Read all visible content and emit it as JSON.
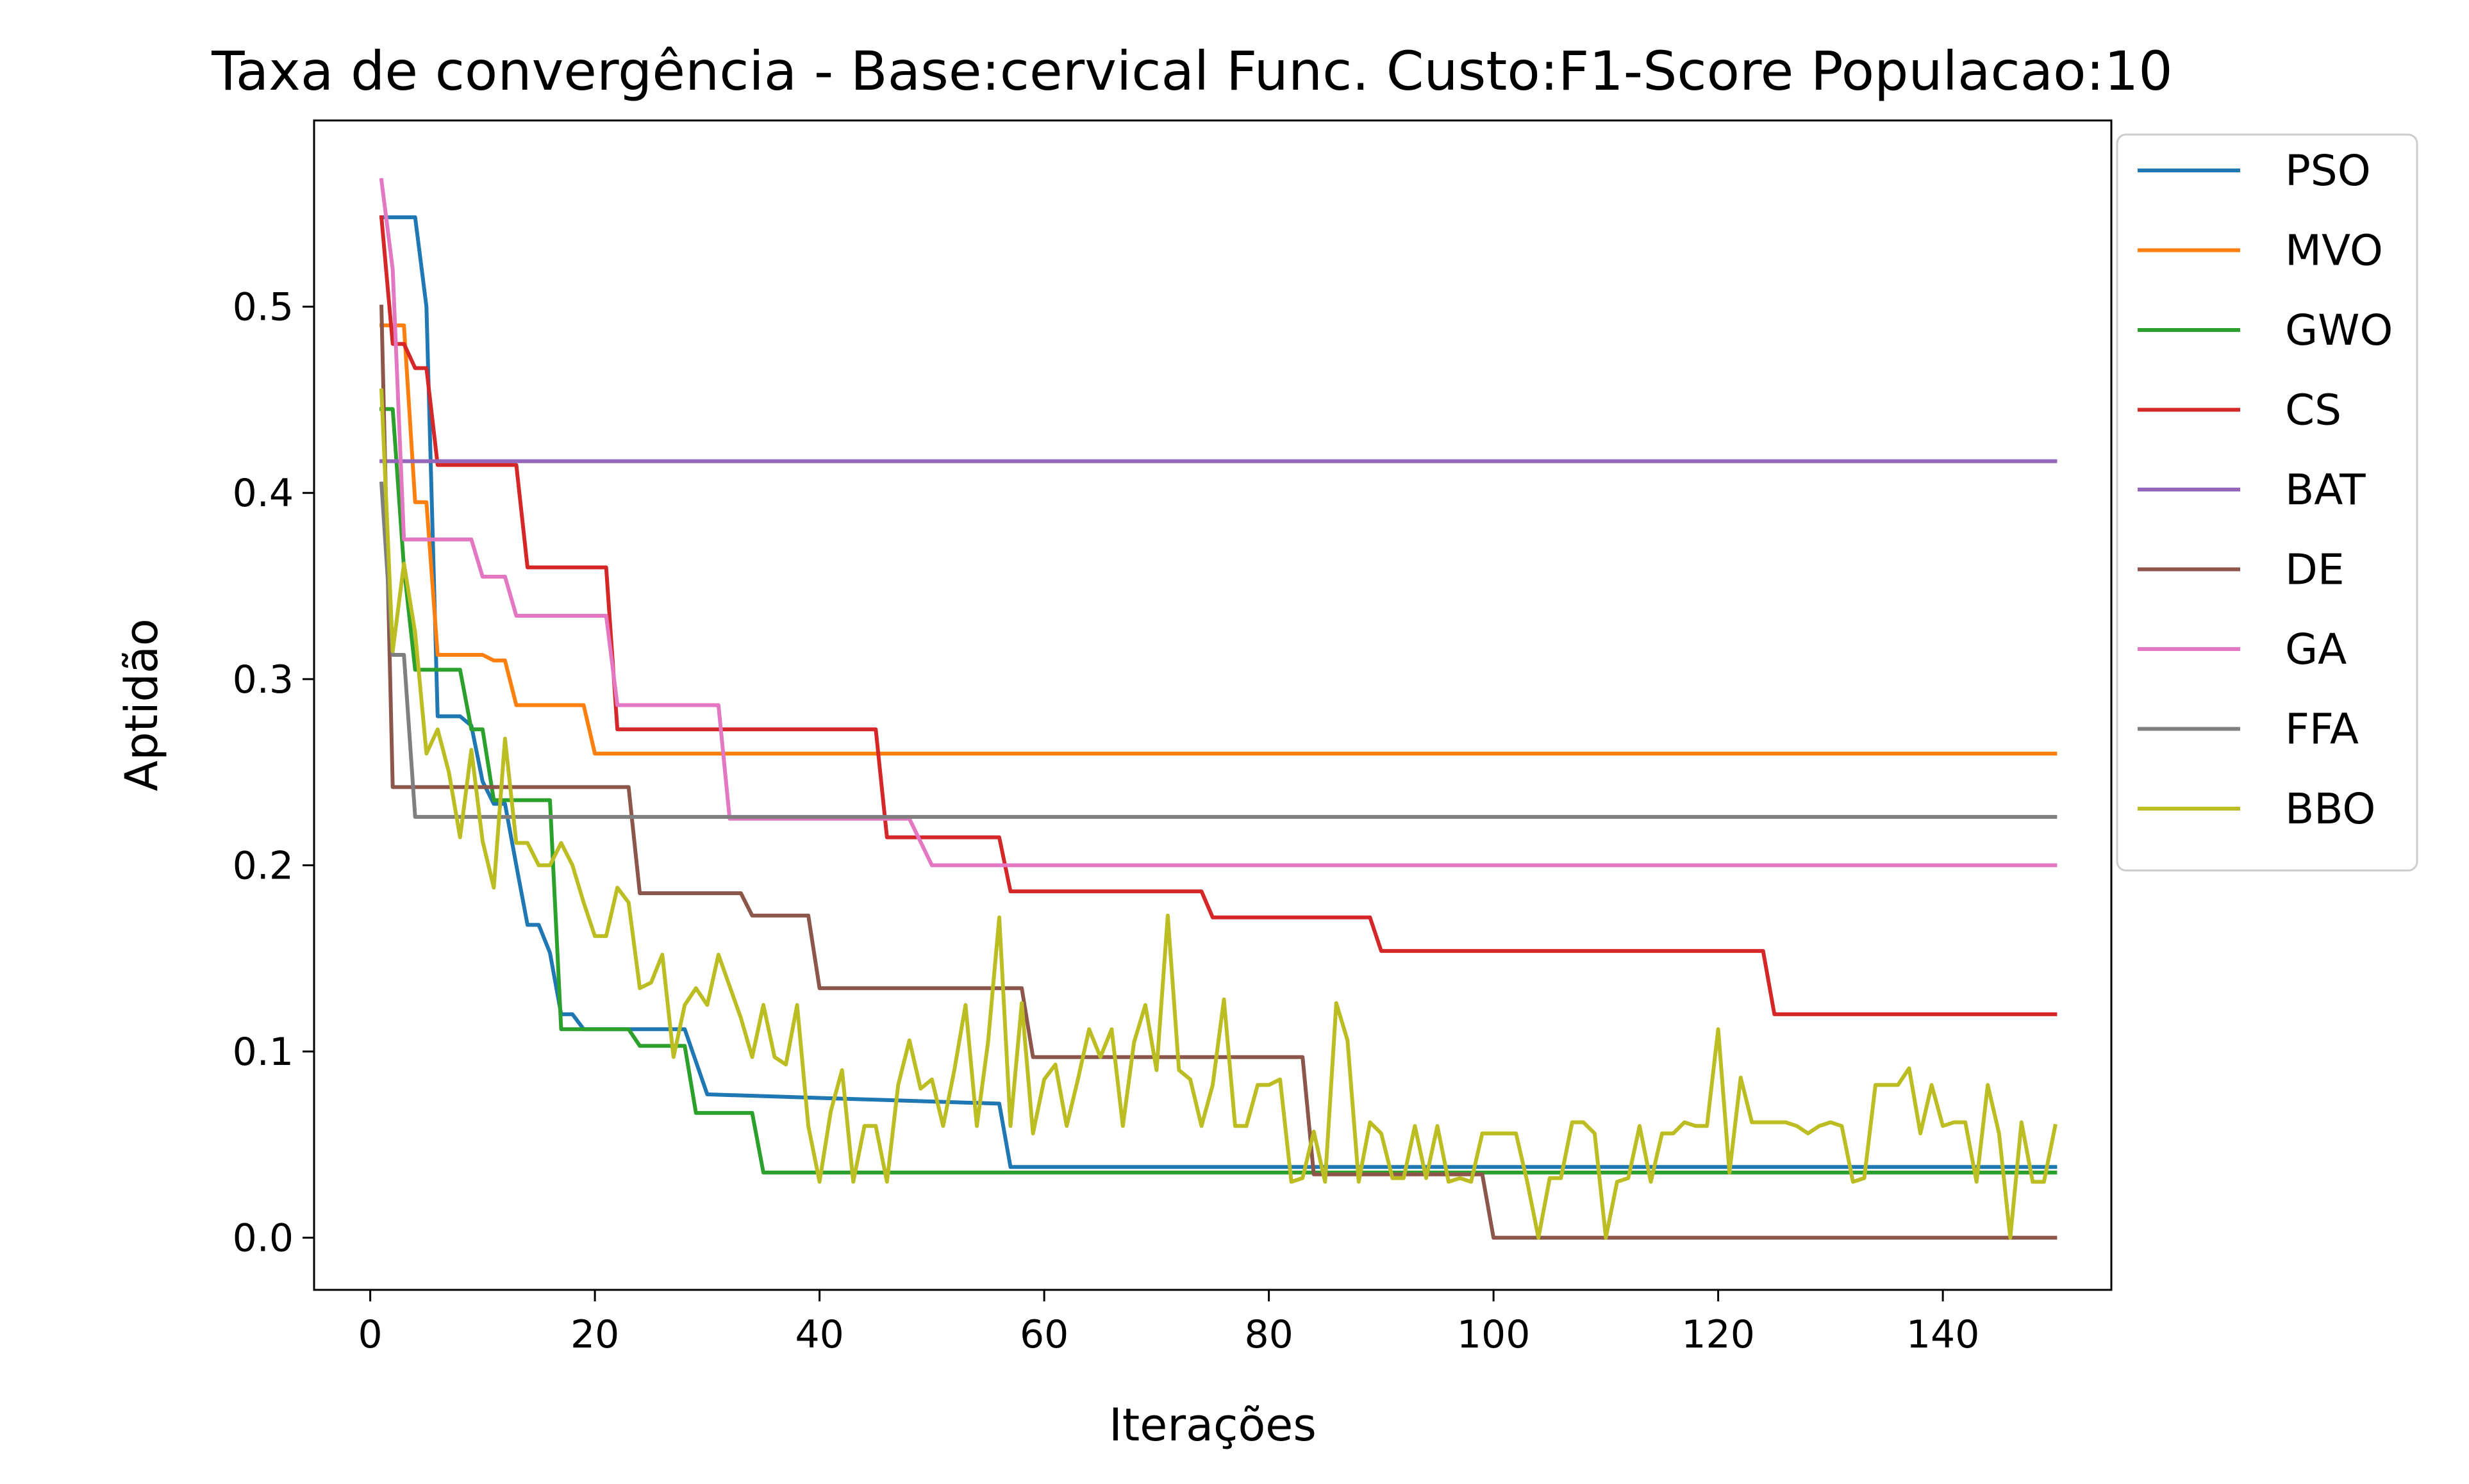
{
  "chart_data": {
    "type": "line",
    "title": "Taxa de convergência - Base:cervical Func. Custo:F1-Score Populacao:10",
    "xlabel": "Iterações",
    "ylabel": "Aptidão",
    "xlim": [
      -5,
      155
    ],
    "ylim": [
      -0.028,
      0.6
    ],
    "xticks": [
      0,
      20,
      40,
      60,
      80,
      100,
      120,
      140
    ],
    "xtick_labels": [
      "0",
      "20",
      "40",
      "60",
      "80",
      "100",
      "120",
      "140"
    ],
    "yticks": [
      0.0,
      0.1,
      0.2,
      0.3,
      0.4,
      0.5
    ],
    "ytick_labels": [
      "0.0",
      "0.1",
      "0.2",
      "0.3",
      "0.4",
      "0.5"
    ],
    "grid": false,
    "legend_position": "outside-right",
    "series": [
      {
        "name": "PSO",
        "color": "#1f77b4",
        "points": [
          [
            1,
            0.548
          ],
          [
            4,
            0.548
          ],
          [
            5,
            0.5
          ],
          [
            6,
            0.28
          ],
          [
            8,
            0.28
          ],
          [
            9,
            0.275
          ],
          [
            10,
            0.245
          ],
          [
            11,
            0.233
          ],
          [
            12,
            0.233
          ],
          [
            13,
            0.2
          ],
          [
            14,
            0.168
          ],
          [
            15,
            0.168
          ],
          [
            16,
            0.153
          ],
          [
            17,
            0.12
          ],
          [
            18,
            0.12
          ],
          [
            19,
            0.112
          ],
          [
            28,
            0.112
          ],
          [
            30,
            0.077
          ],
          [
            56,
            0.072
          ],
          [
            57,
            0.038
          ],
          [
            150,
            0.038
          ]
        ]
      },
      {
        "name": "MVO",
        "color": "#ff7f0e",
        "points": [
          [
            1,
            0.49
          ],
          [
            3,
            0.49
          ],
          [
            4,
            0.395
          ],
          [
            5,
            0.395
          ],
          [
            6,
            0.313
          ],
          [
            10,
            0.313
          ],
          [
            11,
            0.31
          ],
          [
            12,
            0.31
          ],
          [
            13,
            0.286
          ],
          [
            19,
            0.286
          ],
          [
            20,
            0.26
          ],
          [
            150,
            0.26
          ]
        ]
      },
      {
        "name": "GWO",
        "color": "#2ca02c",
        "points": [
          [
            1,
            0.445
          ],
          [
            2,
            0.445
          ],
          [
            3,
            0.36
          ],
          [
            4,
            0.305
          ],
          [
            8,
            0.305
          ],
          [
            9,
            0.273
          ],
          [
            10,
            0.273
          ],
          [
            11,
            0.235
          ],
          [
            16,
            0.235
          ],
          [
            17,
            0.112
          ],
          [
            23,
            0.112
          ],
          [
            24,
            0.103
          ],
          [
            28,
            0.103
          ],
          [
            29,
            0.067
          ],
          [
            34,
            0.067
          ],
          [
            35,
            0.035
          ],
          [
            150,
            0.035
          ]
        ]
      },
      {
        "name": "CS",
        "color": "#d62728",
        "points": [
          [
            1,
            0.548
          ],
          [
            2,
            0.48
          ],
          [
            3,
            0.48
          ],
          [
            4,
            0.467
          ],
          [
            5,
            0.467
          ],
          [
            6,
            0.415
          ],
          [
            13,
            0.415
          ],
          [
            14,
            0.36
          ],
          [
            21,
            0.36
          ],
          [
            22,
            0.273
          ],
          [
            45,
            0.273
          ],
          [
            46,
            0.215
          ],
          [
            56,
            0.215
          ],
          [
            57,
            0.186
          ],
          [
            74,
            0.186
          ],
          [
            75,
            0.172
          ],
          [
            89,
            0.172
          ],
          [
            90,
            0.154
          ],
          [
            124,
            0.154
          ],
          [
            125,
            0.12
          ],
          [
            150,
            0.12
          ]
        ]
      },
      {
        "name": "BAT",
        "color": "#9467bd",
        "points": [
          [
            1,
            0.417
          ],
          [
            150,
            0.417
          ]
        ]
      },
      {
        "name": "DE",
        "color": "#8c564b",
        "points": [
          [
            1,
            0.5
          ],
          [
            2,
            0.242
          ],
          [
            23,
            0.242
          ],
          [
            24,
            0.185
          ],
          [
            33,
            0.185
          ],
          [
            34,
            0.173
          ],
          [
            39,
            0.173
          ],
          [
            40,
            0.134
          ],
          [
            58,
            0.134
          ],
          [
            59,
            0.097
          ],
          [
            83,
            0.097
          ],
          [
            84,
            0.034
          ],
          [
            99,
            0.034
          ],
          [
            100,
            0.0
          ],
          [
            150,
            0.0
          ]
        ]
      },
      {
        "name": "GA",
        "color": "#e377c2",
        "points": [
          [
            1,
            0.568
          ],
          [
            2,
            0.52
          ],
          [
            3,
            0.375
          ],
          [
            9,
            0.375
          ],
          [
            10,
            0.355
          ],
          [
            12,
            0.355
          ],
          [
            13,
            0.334
          ],
          [
            21,
            0.334
          ],
          [
            22,
            0.286
          ],
          [
            31,
            0.286
          ],
          [
            32,
            0.225
          ],
          [
            33,
            0.225
          ],
          [
            48,
            0.225
          ],
          [
            50,
            0.2
          ],
          [
            150,
            0.2
          ]
        ]
      },
      {
        "name": "FFA",
        "color": "#7f7f7f",
        "points": [
          [
            1,
            0.405
          ],
          [
            2,
            0.313
          ],
          [
            3,
            0.313
          ],
          [
            4,
            0.226
          ],
          [
            150,
            0.226
          ]
        ]
      },
      {
        "name": "BBO",
        "color": "#bcbd22",
        "points": [
          [
            1,
            0.455
          ],
          [
            2,
            0.315
          ],
          [
            3,
            0.362
          ],
          [
            4,
            0.325
          ],
          [
            5,
            0.26
          ],
          [
            6,
            0.273
          ],
          [
            7,
            0.25
          ],
          [
            8,
            0.215
          ],
          [
            9,
            0.262
          ],
          [
            10,
            0.213
          ],
          [
            11,
            0.188
          ],
          [
            12,
            0.268
          ],
          [
            13,
            0.212
          ],
          [
            14,
            0.212
          ],
          [
            15,
            0.2
          ],
          [
            16,
            0.2
          ],
          [
            17,
            0.212
          ],
          [
            18,
            0.2
          ],
          [
            19,
            0.18
          ],
          [
            20,
            0.162
          ],
          [
            21,
            0.162
          ],
          [
            22,
            0.188
          ],
          [
            23,
            0.18
          ],
          [
            24,
            0.134
          ],
          [
            25,
            0.137
          ],
          [
            26,
            0.152
          ],
          [
            27,
            0.097
          ],
          [
            28,
            0.125
          ],
          [
            29,
            0.134
          ],
          [
            30,
            0.125
          ],
          [
            31,
            0.152
          ],
          [
            32,
            0.135
          ],
          [
            33,
            0.118
          ],
          [
            34,
            0.097
          ],
          [
            35,
            0.125
          ],
          [
            36,
            0.097
          ],
          [
            37,
            0.093
          ],
          [
            38,
            0.125
          ],
          [
            39,
            0.06
          ],
          [
            40,
            0.03
          ],
          [
            41,
            0.068
          ],
          [
            42,
            0.09
          ],
          [
            43,
            0.03
          ],
          [
            44,
            0.06
          ],
          [
            45,
            0.06
          ],
          [
            46,
            0.03
          ],
          [
            47,
            0.082
          ],
          [
            48,
            0.106
          ],
          [
            49,
            0.08
          ],
          [
            50,
            0.085
          ],
          [
            51,
            0.06
          ],
          [
            52,
            0.09
          ],
          [
            53,
            0.125
          ],
          [
            54,
            0.06
          ],
          [
            55,
            0.105
          ],
          [
            56,
            0.172
          ],
          [
            57,
            0.06
          ],
          [
            58,
            0.126
          ],
          [
            59,
            0.056
          ],
          [
            60,
            0.085
          ],
          [
            61,
            0.093
          ],
          [
            62,
            0.06
          ],
          [
            63,
            0.085
          ],
          [
            64,
            0.112
          ],
          [
            65,
            0.097
          ],
          [
            66,
            0.112
          ],
          [
            67,
            0.06
          ],
          [
            68,
            0.105
          ],
          [
            69,
            0.125
          ],
          [
            70,
            0.09
          ],
          [
            71,
            0.173
          ],
          [
            72,
            0.09
          ],
          [
            73,
            0.085
          ],
          [
            74,
            0.06
          ],
          [
            75,
            0.082
          ],
          [
            76,
            0.128
          ],
          [
            77,
            0.06
          ],
          [
            78,
            0.06
          ],
          [
            79,
            0.082
          ],
          [
            80,
            0.082
          ],
          [
            81,
            0.085
          ],
          [
            82,
            0.03
          ],
          [
            83,
            0.032
          ],
          [
            84,
            0.057
          ],
          [
            85,
            0.03
          ],
          [
            86,
            0.126
          ],
          [
            87,
            0.106
          ],
          [
            88,
            0.03
          ],
          [
            89,
            0.062
          ],
          [
            90,
            0.056
          ],
          [
            91,
            0.032
          ],
          [
            92,
            0.032
          ],
          [
            93,
            0.06
          ],
          [
            94,
            0.032
          ],
          [
            95,
            0.06
          ],
          [
            96,
            0.03
          ],
          [
            97,
            0.032
          ],
          [
            98,
            0.03
          ],
          [
            99,
            0.056
          ],
          [
            100,
            0.056
          ],
          [
            101,
            0.056
          ],
          [
            102,
            0.056
          ],
          [
            103,
            0.03
          ],
          [
            104,
            0.0
          ],
          [
            105,
            0.032
          ],
          [
            106,
            0.032
          ],
          [
            107,
            0.062
          ],
          [
            108,
            0.062
          ],
          [
            109,
            0.056
          ],
          [
            110,
            0.0
          ],
          [
            111,
            0.03
          ],
          [
            112,
            0.032
          ],
          [
            113,
            0.06
          ],
          [
            114,
            0.03
          ],
          [
            115,
            0.056
          ],
          [
            116,
            0.056
          ],
          [
            117,
            0.062
          ],
          [
            118,
            0.06
          ],
          [
            119,
            0.06
          ],
          [
            120,
            0.112
          ],
          [
            121,
            0.035
          ],
          [
            122,
            0.086
          ],
          [
            123,
            0.062
          ],
          [
            124,
            0.062
          ],
          [
            125,
            0.062
          ],
          [
            126,
            0.062
          ],
          [
            127,
            0.06
          ],
          [
            128,
            0.056
          ],
          [
            129,
            0.06
          ],
          [
            130,
            0.062
          ],
          [
            131,
            0.06
          ],
          [
            132,
            0.03
          ],
          [
            133,
            0.032
          ],
          [
            134,
            0.082
          ],
          [
            135,
            0.082
          ],
          [
            136,
            0.082
          ],
          [
            137,
            0.091
          ],
          [
            138,
            0.056
          ],
          [
            139,
            0.082
          ],
          [
            140,
            0.06
          ],
          [
            141,
            0.062
          ],
          [
            142,
            0.062
          ],
          [
            143,
            0.03
          ],
          [
            144,
            0.082
          ],
          [
            145,
            0.056
          ],
          [
            146,
            0.0
          ],
          [
            147,
            0.062
          ],
          [
            148,
            0.03
          ],
          [
            149,
            0.03
          ],
          [
            150,
            0.06
          ]
        ]
      }
    ]
  }
}
